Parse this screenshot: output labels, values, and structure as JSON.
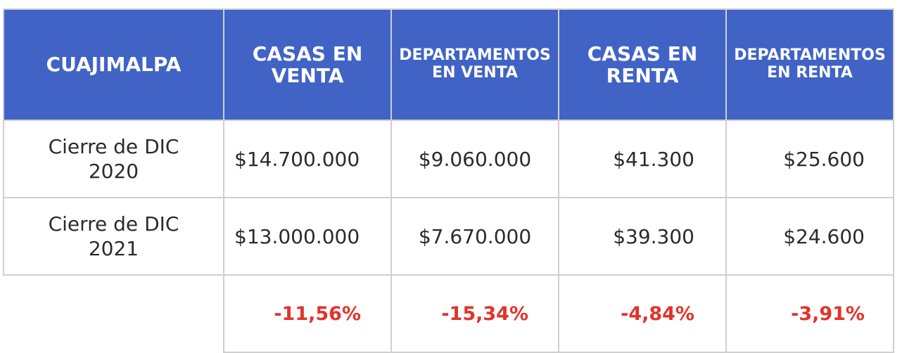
{
  "table": {
    "headers": [
      "CUAJIMALPA",
      "CASAS EN VENTA",
      "DEPARTAMENTOS EN VENTA",
      "CASAS EN RENTA",
      "DEPARTAMENTOS EN RENTA"
    ],
    "rows": [
      {
        "label_line1": "Cierre de DIC",
        "label_line2": "2020",
        "values": [
          "$14.700.000",
          "$9.060.000",
          "$41.300",
          "$25.600"
        ]
      },
      {
        "label_line1": "Cierre de DIC",
        "label_line2": "2021",
        "values": [
          "$13.000.000",
          "$7.670.000",
          "$39.300",
          "$24.600"
        ]
      }
    ],
    "changes": [
      "-11,56%",
      "-15,34%",
      "-4,84%",
      "-3,91%"
    ],
    "colors": {
      "header_bg": "#4063c5",
      "header_text": "#ffffff",
      "negative": "#e2332a",
      "border": "#cfcfcf"
    }
  }
}
